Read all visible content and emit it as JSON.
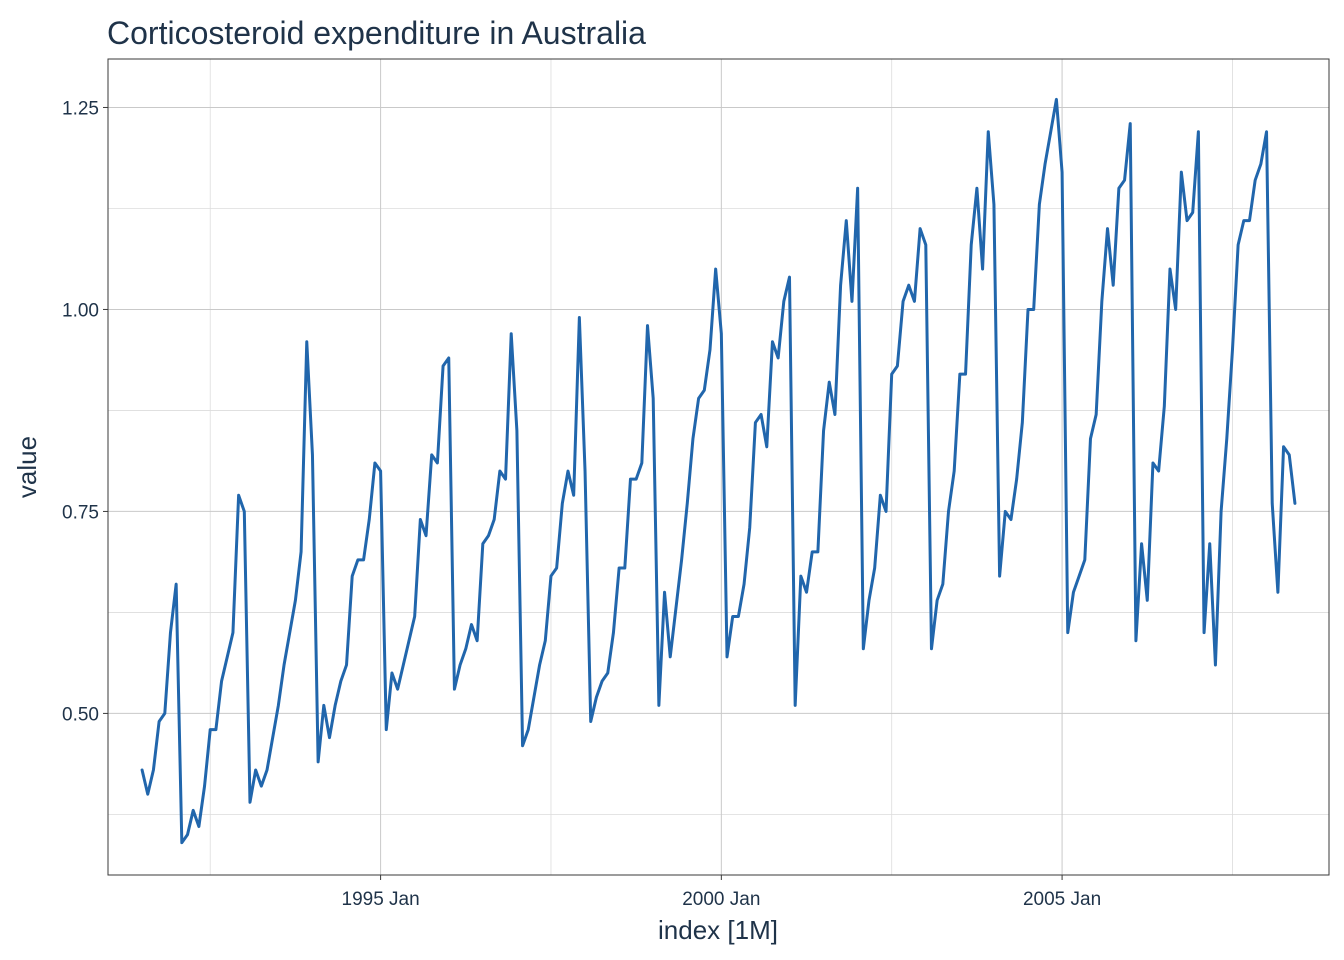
{
  "chart_data": {
    "type": "line",
    "title": "Corticosteroid expenditure in Australia",
    "xlabel": "index [1M]",
    "ylabel": "value",
    "x_start": "1991-07",
    "x_frequency": "monthly",
    "xlim": [
      "1991-01",
      "2008-12"
    ],
    "ylim": [
      0.3,
      1.31
    ],
    "x_ticks": [
      {
        "date": "1995-01",
        "label": "1995 Jan"
      },
      {
        "date": "2000-01",
        "label": "2000 Jan"
      },
      {
        "date": "2005-01",
        "label": "2005 Jan"
      }
    ],
    "y_ticks": [
      {
        "value": 0.5,
        "label": "0.50"
      },
      {
        "value": 0.75,
        "label": "0.75"
      },
      {
        "value": 1.0,
        "label": "1.00"
      },
      {
        "value": 1.25,
        "label": "1.25"
      }
    ],
    "y_minor_ticks": [
      0.375,
      0.625,
      0.875,
      1.125
    ],
    "x_minor_ticks": [
      "1992-07",
      "1997-07",
      "2002-07",
      "2007-07"
    ],
    "grid": true,
    "series": [
      {
        "color": "#2166ac",
        "values": [
          0.43,
          0.4,
          0.43,
          0.49,
          0.5,
          0.6,
          0.66,
          0.34,
          0.35,
          0.38,
          0.36,
          0.41,
          0.48,
          0.48,
          0.54,
          0.57,
          0.6,
          0.77,
          0.75,
          0.39,
          0.43,
          0.41,
          0.43,
          0.47,
          0.51,
          0.56,
          0.6,
          0.64,
          0.7,
          0.96,
          0.82,
          0.44,
          0.51,
          0.47,
          0.51,
          0.54,
          0.56,
          0.67,
          0.69,
          0.69,
          0.74,
          0.81,
          0.8,
          0.48,
          0.55,
          0.53,
          0.56,
          0.59,
          0.62,
          0.74,
          0.72,
          0.82,
          0.81,
          0.93,
          0.94,
          0.53,
          0.56,
          0.58,
          0.61,
          0.59,
          0.71,
          0.72,
          0.74,
          0.8,
          0.79,
          0.97,
          0.85,
          0.46,
          0.48,
          0.52,
          0.56,
          0.59,
          0.67,
          0.68,
          0.76,
          0.8,
          0.77,
          0.99,
          0.8,
          0.49,
          0.52,
          0.54,
          0.55,
          0.6,
          0.68,
          0.68,
          0.79,
          0.79,
          0.81,
          0.98,
          0.89,
          0.51,
          0.65,
          0.57,
          0.63,
          0.69,
          0.76,
          0.84,
          0.89,
          0.9,
          0.95,
          1.05,
          0.97,
          0.57,
          0.62,
          0.62,
          0.66,
          0.73,
          0.86,
          0.87,
          0.83,
          0.96,
          0.94,
          1.01,
          1.04,
          0.51,
          0.67,
          0.65,
          0.7,
          0.7,
          0.85,
          0.91,
          0.87,
          1.03,
          1.11,
          1.01,
          1.15,
          0.58,
          0.64,
          0.68,
          0.77,
          0.75,
          0.92,
          0.93,
          1.01,
          1.03,
          1.01,
          1.1,
          1.08,
          0.58,
          0.64,
          0.66,
          0.75,
          0.8,
          0.92,
          0.92,
          1.08,
          1.15,
          1.05,
          1.22,
          1.13,
          0.67,
          0.75,
          0.74,
          0.79,
          0.86,
          1.0,
          1.0,
          1.13,
          1.18,
          1.22,
          1.26,
          1.17,
          0.6,
          0.65,
          0.67,
          0.69,
          0.84,
          0.87,
          1.01,
          1.1,
          1.03,
          1.15,
          1.16,
          1.23,
          0.59,
          0.71,
          0.64,
          0.81,
          0.8,
          0.88,
          1.05,
          1.0,
          1.17,
          1.11,
          1.12,
          1.22,
          0.6,
          0.71,
          0.56,
          0.75,
          0.84,
          0.95,
          1.08,
          1.11,
          1.11,
          1.16,
          1.18,
          1.22,
          0.76,
          0.65,
          0.83,
          0.82,
          0.76
        ]
      }
    ]
  }
}
